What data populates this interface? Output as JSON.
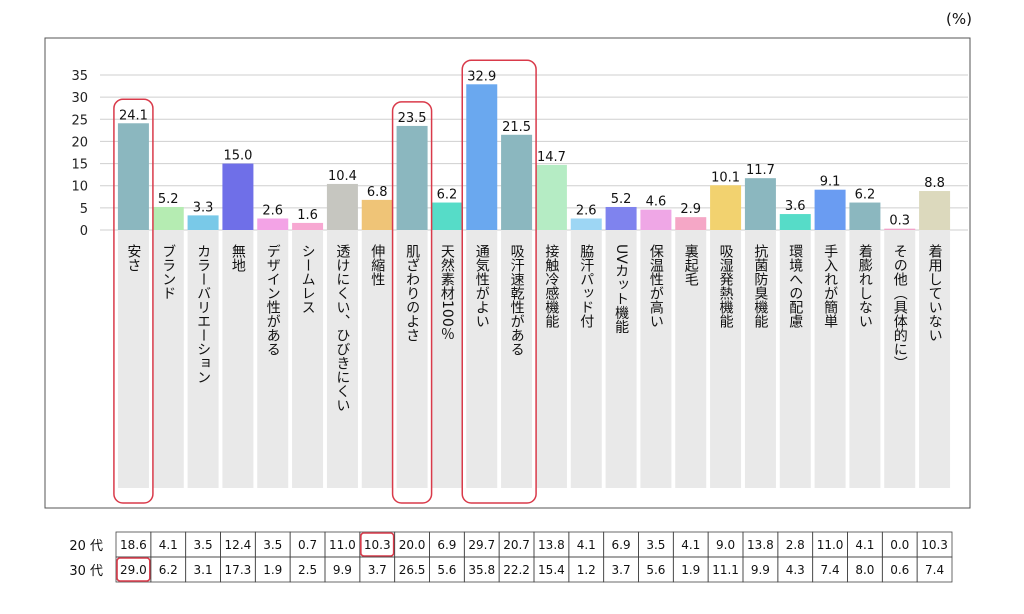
{
  "unit_label": "(%)",
  "chart_data": {
    "type": "bar",
    "title": "",
    "xlabel": "",
    "ylabel": "",
    "ylim": [
      0,
      35
    ],
    "yticks": [
      0,
      5,
      10,
      15,
      20,
      25,
      30,
      35
    ],
    "grid": true,
    "categories": [
      "安さ",
      "ブランド",
      "カラーバリエーション",
      "無地",
      "デザイン性がある",
      "シームレス",
      "透けにくい、ひびきにくい",
      "伸縮性",
      "肌ざわりのよさ",
      "天然素材100％",
      "通気性がよい",
      "吸汗速乾性がある",
      "接触冷感機能",
      "脇汗パッド付",
      "UVカット機能",
      "保温性が高い",
      "裏起毛",
      "吸湿発熱機能",
      "抗菌防臭機能",
      "環境への配慮",
      "手入れが簡単",
      "着膨れしない",
      "その他（具体的に）",
      "着用していない"
    ],
    "values": [
      24.1,
      5.2,
      3.3,
      15.0,
      2.6,
      1.6,
      10.4,
      6.8,
      23.5,
      6.2,
      32.9,
      21.5,
      14.7,
      2.6,
      5.2,
      4.6,
      2.9,
      10.1,
      11.7,
      3.6,
      9.1,
      6.2,
      0.3,
      8.8
    ],
    "value_labels": [
      "24.1",
      "5.2",
      "3.3",
      "15.0",
      "2.6",
      "1.6",
      "10.4",
      "6.8",
      "23.5",
      "6.2",
      "32.9",
      "21.5",
      "14.7",
      "2.6",
      "5.2",
      "4.6",
      "2.9",
      "10.1",
      "11.7",
      "3.6",
      "9.1",
      "6.2",
      "0.3",
      "8.8"
    ],
    "bar_colors": [
      "#8bb7bf",
      "#b5ecb2",
      "#79c9e8",
      "#6f6fe8",
      "#f3a3e6",
      "#f7a8d2",
      "#c6c6c0",
      "#efc477",
      "#8bb7bf",
      "#56dcc8",
      "#6aa8ef",
      "#8bb7bf",
      "#b5ecc4",
      "#9dd6f4",
      "#7f83ee",
      "#efa7e6",
      "#f5a7c6",
      "#f2d26f",
      "#8bb7bf",
      "#56dcc8",
      "#6a9cf2",
      "#8bb7bf",
      "#f1a3c9",
      "#dcd9bd"
    ],
    "highlighted_categories": [
      "安さ",
      "肌ざわりのよさ",
      "通気性がよい",
      "吸汗速乾性がある"
    ],
    "table": [
      {
        "label": "20 代",
        "values": [
          "18.6",
          "4.1",
          "3.5",
          "12.4",
          "3.5",
          "0.7",
          "11.0",
          "10.3",
          "20.0",
          "6.9",
          "29.7",
          "20.7",
          "13.8",
          "4.1",
          "6.9",
          "3.5",
          "4.1",
          "9.0",
          "13.8",
          "2.8",
          "11.0",
          "4.1",
          "0.0",
          "10.3"
        ],
        "highlight_index": 7
      },
      {
        "label": "30 代",
        "values": [
          "29.0",
          "6.2",
          "3.1",
          "17.3",
          "1.9",
          "2.5",
          "9.9",
          "3.7",
          "26.5",
          "5.6",
          "35.8",
          "22.2",
          "15.4",
          "1.2",
          "3.7",
          "5.6",
          "1.9",
          "11.1",
          "9.9",
          "4.3",
          "7.4",
          "8.0",
          "0.6",
          "7.4"
        ],
        "highlight_index": 0
      }
    ]
  },
  "colors": {
    "highlight": "#d93a4a",
    "grid": "#cfcfcf",
    "column_bg": "#e9e9e9",
    "frame": "#555555"
  }
}
